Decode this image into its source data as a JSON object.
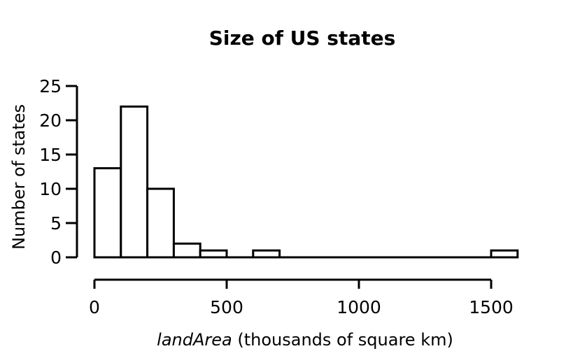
{
  "chart_data": {
    "type": "bar",
    "subtype": "histogram",
    "title": "Size of US states",
    "ylabel": "Number of states",
    "xlabel_variable": "landArea",
    "xlabel_units": " (thousands of square km)",
    "bin_width": 100,
    "bins": [
      {
        "start": 0,
        "end": 100,
        "count": 13
      },
      {
        "start": 100,
        "end": 200,
        "count": 22
      },
      {
        "start": 200,
        "end": 300,
        "count": 10
      },
      {
        "start": 300,
        "end": 400,
        "count": 2
      },
      {
        "start": 400,
        "end": 500,
        "count": 1
      },
      {
        "start": 500,
        "end": 600,
        "count": 0
      },
      {
        "start": 600,
        "end": 700,
        "count": 1
      },
      {
        "start": 700,
        "end": 800,
        "count": 0
      },
      {
        "start": 800,
        "end": 900,
        "count": 0
      },
      {
        "start": 900,
        "end": 1000,
        "count": 0
      },
      {
        "start": 1000,
        "end": 1100,
        "count": 0
      },
      {
        "start": 1100,
        "end": 1200,
        "count": 0
      },
      {
        "start": 1200,
        "end": 1300,
        "count": 0
      },
      {
        "start": 1300,
        "end": 1400,
        "count": 0
      },
      {
        "start": 1400,
        "end": 1500,
        "count": 0
      },
      {
        "start": 1500,
        "end": 1600,
        "count": 1
      }
    ],
    "xticks": [
      0,
      500,
      1000,
      1500
    ],
    "yticks": [
      0,
      5,
      10,
      15,
      20,
      25
    ],
    "xlim": [
      0,
      1600
    ],
    "ylim": [
      0,
      25
    ],
    "grid": false,
    "legend": "none",
    "bar_fill": "#ffffff",
    "stroke_color": "#000000",
    "background": "#ffffff"
  }
}
